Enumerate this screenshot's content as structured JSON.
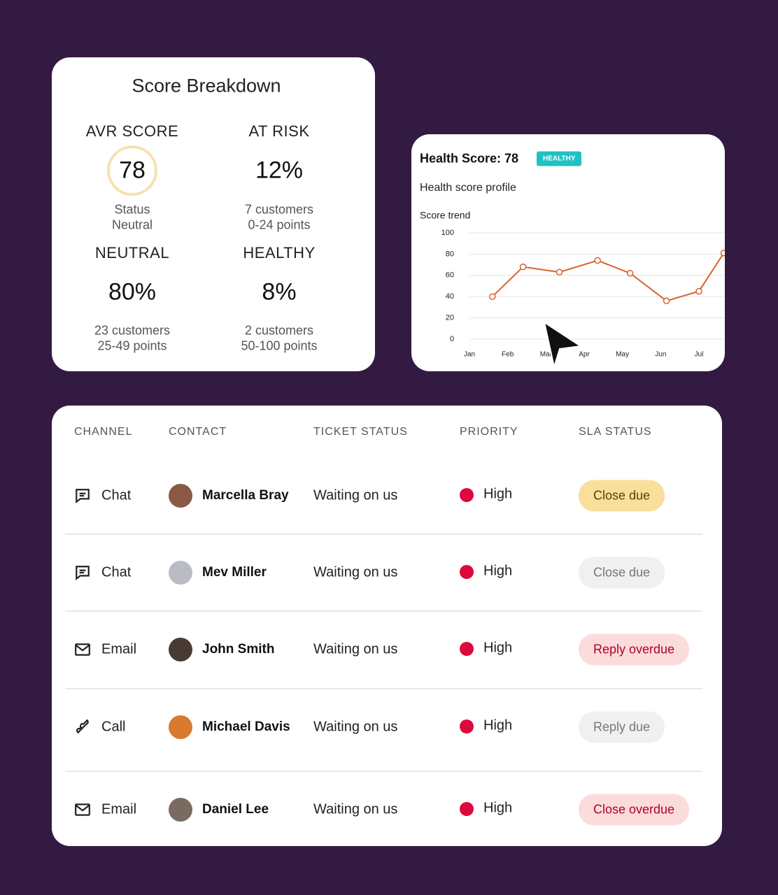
{
  "score_breakdown": {
    "title": "Score Breakdown",
    "metrics": [
      {
        "label": "AVR SCORE",
        "value": 78,
        "lines": [
          "Status",
          "Neutral"
        ]
      },
      {
        "label": "AT RISK",
        "value": "12%",
        "lines": [
          "7 customers",
          "0-24 points"
        ]
      },
      {
        "label": "NEUTRAL",
        "value": "80%",
        "lines": [
          "23 customers",
          "25-49 points"
        ]
      },
      {
        "label": "HEALTHY",
        "value": "8%",
        "lines": [
          "2 customers",
          "50-100 points"
        ]
      }
    ]
  },
  "health_card": {
    "title": "Health Score: 78",
    "badge": "HEALTHY",
    "subtitle": "Health score profile"
  },
  "chart_data": {
    "type": "line",
    "title": "Score trend",
    "series": [
      {
        "color": "#d9622b",
        "x": [
          0.6,
          1.4,
          2.35,
          3.35,
          4.2,
          5.15,
          6,
          6.65
        ],
        "values": [
          40,
          68,
          63,
          74,
          62,
          36,
          45,
          81
        ]
      }
    ],
    "xlim": [
      0,
      6.7
    ],
    "xticks": [
      {
        "value": 0,
        "label": "Jan"
      },
      {
        "value": 1,
        "label": "Feb"
      },
      {
        "value": 2,
        "label": "Mar"
      },
      {
        "value": 3,
        "label": "Apr"
      },
      {
        "value": 4,
        "label": "May"
      },
      {
        "value": 5,
        "label": "Jun"
      },
      {
        "value": 6,
        "label": "Jul"
      }
    ],
    "ylim": [
      0,
      100
    ],
    "yticks": [
      0,
      20,
      40,
      60,
      80,
      100
    ],
    "grid": true
  },
  "table": {
    "headers": [
      "CHANNEL",
      "CONTACT",
      "TICKET STATUS",
      "PRIORITY",
      "SLA STATUS"
    ],
    "rows": [
      [
        "Chat",
        "Marcella Bray",
        "Waiting on us",
        "High",
        "Close due"
      ],
      [
        "Chat",
        "Mev Miller",
        "Waiting on us",
        "High",
        "Close due"
      ],
      [
        "Email",
        "John Smith",
        "Waiting on us",
        "High",
        "Reply overdue"
      ],
      [
        "Call",
        "Michael Davis",
        "Waiting on us",
        "High",
        "Reply due"
      ],
      [
        "Email",
        "Daniel Lee",
        "Waiting on us",
        "High",
        "Close overdue"
      ]
    ]
  }
}
